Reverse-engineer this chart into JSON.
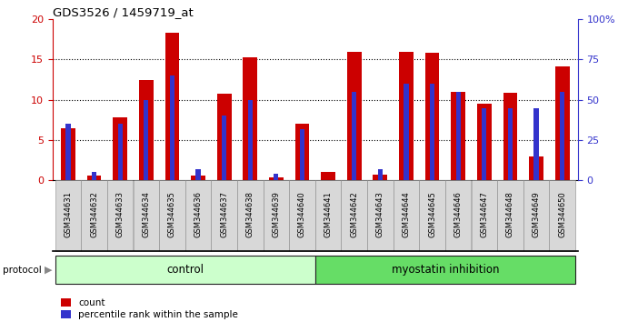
{
  "title": "GDS3526 / 1459719_at",
  "samples": [
    "GSM344631",
    "GSM344632",
    "GSM344633",
    "GSM344634",
    "GSM344635",
    "GSM344636",
    "GSM344637",
    "GSM344638",
    "GSM344639",
    "GSM344640",
    "GSM344641",
    "GSM344642",
    "GSM344643",
    "GSM344644",
    "GSM344645",
    "GSM344646",
    "GSM344647",
    "GSM344648",
    "GSM344649",
    "GSM344650"
  ],
  "count": [
    6.5,
    0.6,
    7.8,
    12.5,
    18.3,
    0.6,
    10.8,
    15.3,
    0.4,
    7.0,
    1.1,
    16.0,
    0.7,
    16.0,
    15.8,
    11.0,
    9.5,
    10.9,
    3.0,
    14.1
  ],
  "percentile": [
    35,
    5,
    35,
    50,
    65,
    7,
    40,
    50,
    4,
    32,
    0,
    55,
    7,
    60,
    60,
    55,
    45,
    45,
    45,
    55
  ],
  "groups": [
    {
      "label": "control",
      "start": 0,
      "end": 10,
      "color": "#ccffcc"
    },
    {
      "label": "myostatin inhibition",
      "start": 10,
      "end": 20,
      "color": "#66dd66"
    }
  ],
  "ylim_left": [
    0,
    20
  ],
  "ylim_right": [
    0,
    100
  ],
  "yticks_left": [
    0,
    5,
    10,
    15,
    20
  ],
  "yticks_right": [
    0,
    25,
    50,
    75,
    100
  ],
  "ytick_labels_right": [
    "0",
    "25",
    "50",
    "75",
    "100%"
  ],
  "bar_color_red": "#cc0000",
  "bar_color_blue": "#3333cc",
  "bar_width": 0.55,
  "blue_bar_width": 0.18,
  "tick_bg_color": "#d8d8d8",
  "tick_border_color": "#888888"
}
